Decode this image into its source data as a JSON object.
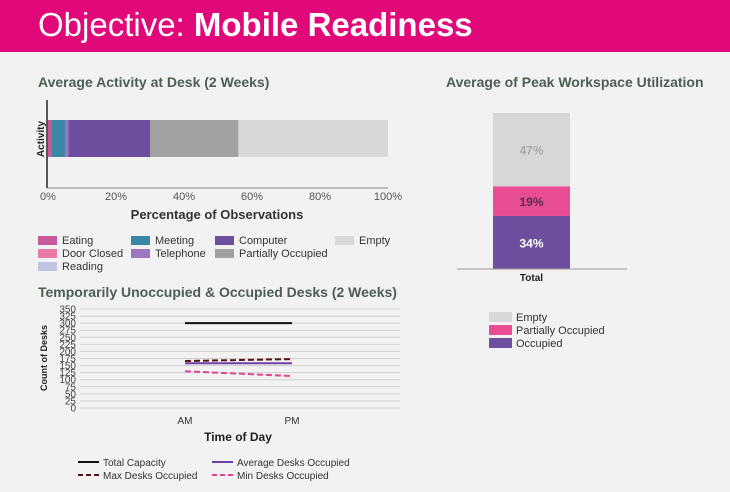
{
  "banner": {
    "prefix": "Objective:",
    "title": "Mobile Readiness"
  },
  "chart_data": [
    {
      "type": "bar",
      "orientation": "horizontal-stacked",
      "title": "Average Activity at Desk (2 Weeks)",
      "xlabel": "Percentage of Observations",
      "ylabel": "Activity",
      "xlim": [
        0,
        100
      ],
      "xticks": [
        "0%",
        "20%",
        "40%",
        "60%",
        "80%",
        "100%"
      ],
      "series": [
        {
          "name": "Eating",
          "value": 1,
          "color": "#c7589a"
        },
        {
          "name": "Meeting",
          "value": 4,
          "color": "#3b87a6"
        },
        {
          "name": "Door Closed",
          "value": 0,
          "color": "#ea7aa8"
        },
        {
          "name": "Telephone",
          "value": 1,
          "color": "#9b77c0"
        },
        {
          "name": "Reading",
          "value": 0,
          "color": "#c1c4e0"
        },
        {
          "name": "Computer",
          "value": 24,
          "color": "#6e4f9f"
        },
        {
          "name": "Partially Occupied",
          "value": 26,
          "color": "#a1a1a1"
        },
        {
          "name": "Empty",
          "value": 44,
          "color": "#d8d8d8"
        }
      ],
      "legend": "bottom"
    },
    {
      "type": "bar",
      "orientation": "vertical-stacked",
      "title": "Average of Peak Workspace Utilization",
      "categories": [
        "Total"
      ],
      "series": [
        {
          "name": "Occupied",
          "value": 34,
          "label": "34%",
          "color": "#6e4f9f"
        },
        {
          "name": "Partially Occupied",
          "value": 19,
          "label": "19%",
          "color": "#e84c92"
        },
        {
          "name": "Empty",
          "value": 47,
          "label": "47%",
          "color": "#d7d7d7"
        }
      ],
      "legend_order": [
        "Empty",
        "Partially Occupied",
        "Occupied"
      ],
      "legend": "bottom"
    },
    {
      "type": "line",
      "title": "Temporarily Unoccupied & Occupied Desks (2 Weeks)",
      "xlabel": "Time of Day",
      "ylabel": "Count of Desks",
      "categories": [
        "AM",
        "PM"
      ],
      "ylim": [
        0,
        350
      ],
      "yticks": [
        0,
        25,
        50,
        75,
        100,
        125,
        150,
        175,
        200,
        225,
        250,
        275,
        300,
        325,
        350
      ],
      "series": [
        {
          "name": "Total Capacity",
          "values": [
            300,
            300
          ],
          "color": "#111111",
          "dash": "solid"
        },
        {
          "name": "Average Desks Occupied",
          "values": [
            158,
            158
          ],
          "color": "#6e3fa8",
          "dash": "solid"
        },
        {
          "name": "Max Desks Occupied",
          "values": [
            166,
            173
          ],
          "color": "#5a1212",
          "dash": "dashed"
        },
        {
          "name": "Min Desks Occupied",
          "values": [
            130,
            113
          ],
          "color": "#e0468e",
          "dash": "dashed"
        }
      ],
      "legend": "bottom"
    }
  ]
}
